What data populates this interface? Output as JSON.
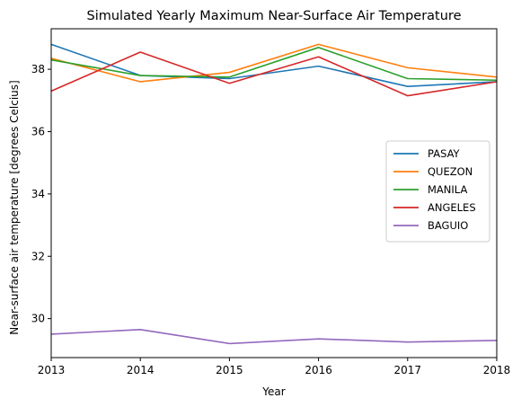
{
  "chart_data": {
    "type": "line",
    "title": "Simulated Yearly Maximum Near-Surface Air Temperature",
    "xlabel": "Year",
    "ylabel": "Near-surface air temperature [degrees Celcius]",
    "x": [
      2013,
      2014,
      2015,
      2016,
      2017,
      2018
    ],
    "xlim": [
      2013,
      2018
    ],
    "ylim": [
      28.75,
      39.3
    ],
    "xticks": [
      "2013",
      "2014",
      "2015",
      "2016",
      "2017",
      "2018"
    ],
    "yticks": [
      "30",
      "32",
      "34",
      "36",
      "38"
    ],
    "ytick_values": [
      30,
      32,
      34,
      36,
      38
    ],
    "grid": false,
    "legend_position": "right",
    "series": [
      {
        "name": "PASAY",
        "color": "#1f77b4",
        "values": [
          38.8,
          37.8,
          37.7,
          38.1,
          37.45,
          37.6
        ]
      },
      {
        "name": "QUEZON",
        "color": "#ff7f0e",
        "values": [
          38.35,
          37.6,
          37.9,
          38.8,
          38.05,
          37.75
        ]
      },
      {
        "name": "MANILA",
        "color": "#2ca02c",
        "values": [
          38.3,
          37.8,
          37.75,
          38.7,
          37.7,
          37.65
        ]
      },
      {
        "name": "ANGELES",
        "color": "#d62728",
        "values": [
          37.3,
          38.55,
          37.55,
          38.4,
          37.15,
          37.6
        ]
      },
      {
        "name": "BAGUIO",
        "color": "#9467bd",
        "values": [
          29.5,
          29.65,
          29.2,
          29.35,
          29.25,
          29.3
        ]
      }
    ]
  }
}
